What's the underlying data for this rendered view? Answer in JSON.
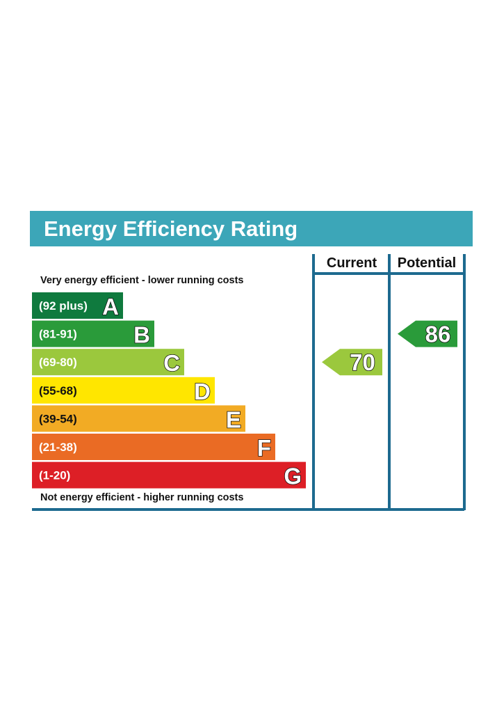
{
  "title": "Energy Efficiency Rating",
  "columns": {
    "current": "Current",
    "potential": "Potential"
  },
  "top_note": "Very energy efficient - lower running costs",
  "bottom_note": "Not energy efficient - higher running costs",
  "colors": {
    "header": "#3ca6b8",
    "frame": "#1d6a8f",
    "A": "#0f7a3e",
    "B": "#2a9b3a",
    "C": "#9bc83d",
    "D": "#ffe600",
    "E": "#f2ab24",
    "F": "#ea6b24",
    "G": "#dd1f26"
  },
  "chart_data": {
    "type": "bar",
    "title": "Energy Efficiency Rating",
    "categories": [
      "A",
      "B",
      "C",
      "D",
      "E",
      "F",
      "G"
    ],
    "ranges": [
      "(92 plus)",
      "(81-91)",
      "(69-80)",
      "(55-68)",
      "(39-54)",
      "(21-38)",
      "(1-20)"
    ],
    "current": {
      "value": 70,
      "band": "C"
    },
    "potential": {
      "value": 86,
      "band": "B"
    }
  }
}
